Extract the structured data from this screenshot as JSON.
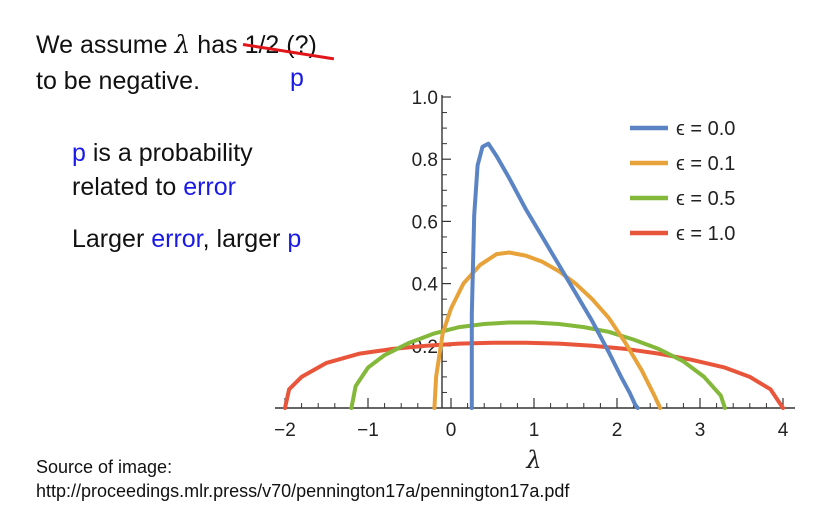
{
  "notes": {
    "line1_prefix": "We assume",
    "lambda_symbol": "λ",
    "line1_has": "has",
    "struck_text": "1/2 (?)",
    "replacement": "p",
    "line2": "to be negative.",
    "p_desc_var": "p",
    "p_desc_rest": " is a probability",
    "p_desc_line2_prefix": "related to ",
    "p_desc_line2_error": "error",
    "larger_prefix": "Larger ",
    "larger_error": "error",
    "larger_mid": ", larger ",
    "larger_p": "p"
  },
  "source": {
    "label": "Source of image:",
    "url": "http://proceedings.mlr.press/v70/pennington17a/pennington17a.pdf"
  },
  "colors": {
    "text_blue": "#1a1ae6",
    "strike_red": "#e0161b"
  },
  "chart_data": {
    "type": "line",
    "xlabel": "λ",
    "ylabel": "",
    "xlim": [
      -2,
      4
    ],
    "ylim": [
      0,
      1.0
    ],
    "x_ticks": [
      "−2",
      "−1",
      "0",
      "1",
      "2",
      "3",
      "4"
    ],
    "y_ticks": [
      "0.2",
      "0.4",
      "0.6",
      "0.8",
      "1.0"
    ],
    "legend_position": "top-right",
    "series": [
      {
        "name": "ϵ = 0.0",
        "color": "#5b84c4",
        "x": [
          0.25,
          0.25,
          0.28,
          0.32,
          0.38,
          0.45,
          0.55,
          0.7,
          0.9,
          1.1,
          1.3,
          1.5,
          1.7,
          1.9,
          2.05,
          2.15,
          2.22,
          2.25
        ],
        "y": [
          0,
          0.3,
          0.62,
          0.78,
          0.84,
          0.85,
          0.81,
          0.74,
          0.64,
          0.55,
          0.46,
          0.37,
          0.28,
          0.18,
          0.1,
          0.05,
          0.01,
          0
        ]
      },
      {
        "name": "ϵ = 0.1",
        "color": "#e8a23a",
        "x": [
          -0.2,
          -0.18,
          -0.1,
          0.0,
          0.15,
          0.35,
          0.55,
          0.7,
          0.9,
          1.1,
          1.3,
          1.5,
          1.7,
          1.9,
          2.1,
          2.3,
          2.45,
          2.52
        ],
        "y": [
          0,
          0.1,
          0.24,
          0.32,
          0.4,
          0.46,
          0.495,
          0.5,
          0.49,
          0.47,
          0.44,
          0.4,
          0.35,
          0.29,
          0.21,
          0.12,
          0.04,
          0
        ]
      },
      {
        "name": "ϵ = 0.5",
        "color": "#84b83a",
        "x": [
          -1.2,
          -1.15,
          -1.0,
          -0.8,
          -0.5,
          -0.2,
          0.1,
          0.4,
          0.7,
          1.0,
          1.3,
          1.6,
          1.9,
          2.2,
          2.5,
          2.8,
          3.05,
          3.25,
          3.3
        ],
        "y": [
          0,
          0.07,
          0.13,
          0.17,
          0.21,
          0.24,
          0.26,
          0.27,
          0.275,
          0.275,
          0.27,
          0.26,
          0.245,
          0.22,
          0.19,
          0.15,
          0.1,
          0.04,
          0
        ]
      },
      {
        "name": "ϵ = 1.0",
        "color": "#e8553a",
        "x": [
          -2.0,
          -1.95,
          -1.8,
          -1.5,
          -1.1,
          -0.7,
          -0.3,
          0.1,
          0.5,
          0.9,
          1.3,
          1.7,
          2.1,
          2.5,
          2.9,
          3.3,
          3.6,
          3.85,
          4.0
        ],
        "y": [
          0,
          0.06,
          0.1,
          0.145,
          0.175,
          0.19,
          0.2,
          0.207,
          0.21,
          0.21,
          0.207,
          0.2,
          0.19,
          0.175,
          0.155,
          0.13,
          0.1,
          0.06,
          0
        ]
      }
    ]
  }
}
